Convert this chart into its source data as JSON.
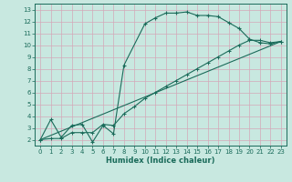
{
  "xlabel": "Humidex (Indice chaleur)",
  "background_color": "#c8e8e0",
  "grid_color": "#d4a8b8",
  "line_color": "#1a6b5a",
  "xlim": [
    -0.5,
    23.5
  ],
  "ylim": [
    1.5,
    13.5
  ],
  "xticks": [
    0,
    1,
    2,
    3,
    4,
    5,
    6,
    7,
    8,
    9,
    10,
    11,
    12,
    13,
    14,
    15,
    16,
    17,
    18,
    19,
    20,
    21,
    22,
    23
  ],
  "yticks": [
    2,
    3,
    4,
    5,
    6,
    7,
    8,
    9,
    10,
    11,
    12,
    13
  ],
  "line1_x": [
    0,
    1,
    2,
    3,
    4,
    5,
    6,
    7,
    8,
    10,
    11,
    12,
    13,
    14,
    15,
    16,
    17,
    18,
    19,
    20,
    21,
    22,
    23
  ],
  "line1_y": [
    2.0,
    3.7,
    2.2,
    3.2,
    3.3,
    1.8,
    3.2,
    2.5,
    8.3,
    11.8,
    12.3,
    12.7,
    12.7,
    12.8,
    12.5,
    12.5,
    12.4,
    11.9,
    11.4,
    10.5,
    10.2,
    10.1,
    10.3
  ],
  "line2_x": [
    0,
    1,
    2,
    3,
    4,
    5,
    6,
    7,
    8,
    9,
    10,
    11,
    12,
    13,
    14,
    15,
    16,
    17,
    18,
    19,
    20,
    21,
    22,
    23
  ],
  "line2_y": [
    2.0,
    2.1,
    2.1,
    2.6,
    2.6,
    2.6,
    3.3,
    3.2,
    4.2,
    4.8,
    5.5,
    6.0,
    6.5,
    7.0,
    7.5,
    8.0,
    8.5,
    9.0,
    9.5,
    10.0,
    10.4,
    10.4,
    10.2,
    10.3
  ],
  "line3_x": [
    0,
    23
  ],
  "line3_y": [
    2.0,
    10.3
  ]
}
